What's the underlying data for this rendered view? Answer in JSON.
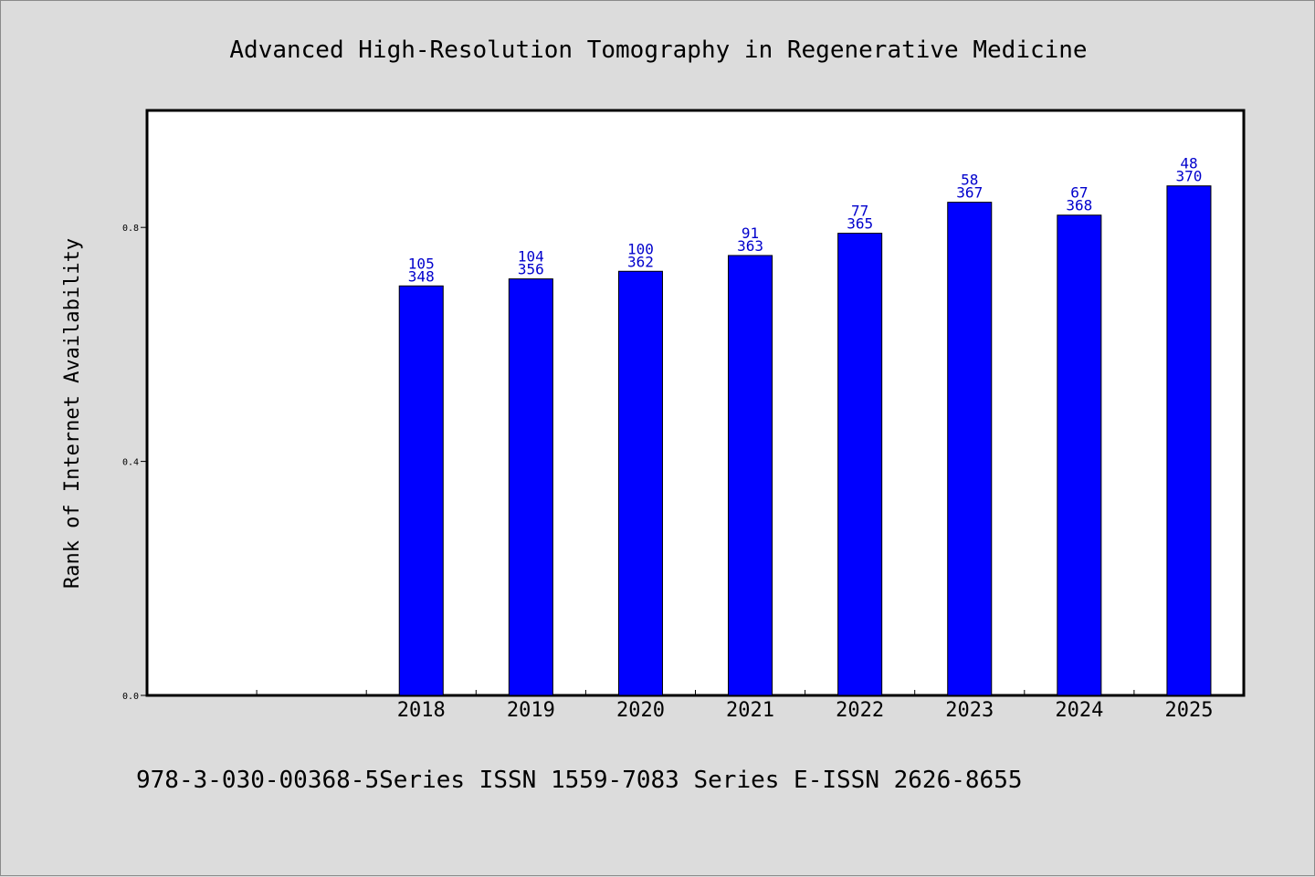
{
  "chart_data": {
    "type": "bar",
    "title": "Advanced High-Resolution Tomography in Regenerative Medicine",
    "ylabel": "Rank of Internet Availability",
    "xlabel": "",
    "footer": "978-3-030-00368-5Series ISSN 1559-7083 Series E-ISSN 2626-8655",
    "categories": [
      "2018",
      "2019",
      "2020",
      "2021",
      "2022",
      "2023",
      "2024",
      "2025"
    ],
    "values": [
      0.7,
      0.712,
      0.725,
      0.752,
      0.79,
      0.843,
      0.821,
      0.871
    ],
    "labels_top": [
      "105",
      "104",
      "100",
      "91",
      "77",
      "58",
      "67",
      "48"
    ],
    "labels_bottom": [
      "348",
      "356",
      "362",
      "363",
      "365",
      "367",
      "368",
      "370"
    ],
    "yticks": [
      0.0,
      0.4,
      0.8
    ],
    "ytick_labels": [
      "0.0",
      "0.4",
      "0.8"
    ],
    "ylim": [
      0,
      1.0
    ],
    "x_empty_slots": 2,
    "colors": {
      "bar": "#0000ff",
      "label": "#0000cc",
      "background": "#dcdcdc",
      "plot": "#ffffff"
    }
  }
}
